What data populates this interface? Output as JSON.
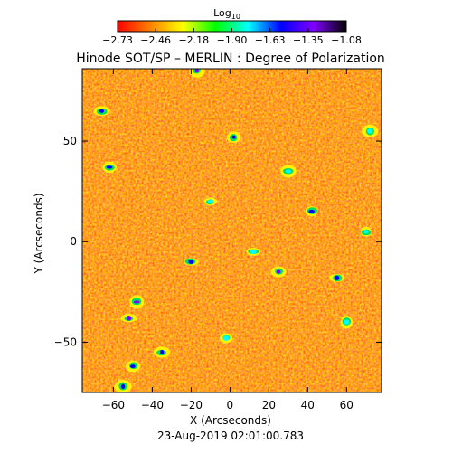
{
  "chart_data": {
    "type": "heatmap",
    "title": "Hinode SOT/SP – MERLIN : Degree of Polarization",
    "xlabel": "X (Arcseconds)",
    "ylabel": "Y (Arcseconds)",
    "footer": "23-Aug-2019 02:01:00.783",
    "xlim": [
      -76,
      78
    ],
    "ylim": [
      -75,
      86
    ],
    "x_ticks": [
      -60,
      -40,
      -20,
      0,
      20,
      40,
      60
    ],
    "y_ticks": [
      -50,
      0,
      50
    ],
    "colorbar": {
      "label": "Log",
      "label_sub": "10",
      "range": [
        -2.73,
        -1.08
      ],
      "ticks": [
        "−2.73",
        "−2.46",
        "−2.18",
        "−1.90",
        "−1.63",
        "−1.35",
        "−1.08"
      ],
      "colormap": [
        "#ff0000",
        "#ff8000",
        "#ffff00",
        "#00ff00",
        "#00ffff",
        "#0000ff",
        "#8000ff",
        "#000000"
      ]
    },
    "field_summary": {
      "background_value": -2.6,
      "dominant_color": "#ff5a14"
    },
    "features": [
      {
        "x": -17,
        "y": 85,
        "value": -1.35
      },
      {
        "x": -66,
        "y": 65,
        "value": -1.5
      },
      {
        "x": 2,
        "y": 52,
        "value": -1.63
      },
      {
        "x": -62,
        "y": 37,
        "value": -1.5
      },
      {
        "x": 42,
        "y": 15,
        "value": -1.63
      },
      {
        "x": 72,
        "y": 55,
        "value": -1.9
      },
      {
        "x": 25,
        "y": -15,
        "value": -1.35
      },
      {
        "x": -48,
        "y": -30,
        "value": -1.35
      },
      {
        "x": -52,
        "y": -38,
        "value": -1.35
      },
      {
        "x": -20,
        "y": -10,
        "value": -1.63
      },
      {
        "x": 12,
        "y": -5,
        "value": -1.9
      },
      {
        "x": 55,
        "y": -18,
        "value": -1.63
      },
      {
        "x": -50,
        "y": -62,
        "value": -1.63
      },
      {
        "x": -2,
        "y": -48,
        "value": -1.9
      },
      {
        "x": -55,
        "y": -72,
        "value": -1.63
      },
      {
        "x": 70,
        "y": 5,
        "value": -1.9
      },
      {
        "x": -10,
        "y": 20,
        "value": -1.9
      },
      {
        "x": 30,
        "y": 35,
        "value": -1.9
      },
      {
        "x": 60,
        "y": -40,
        "value": -1.9
      },
      {
        "x": -35,
        "y": -55,
        "value": -1.63
      }
    ]
  }
}
